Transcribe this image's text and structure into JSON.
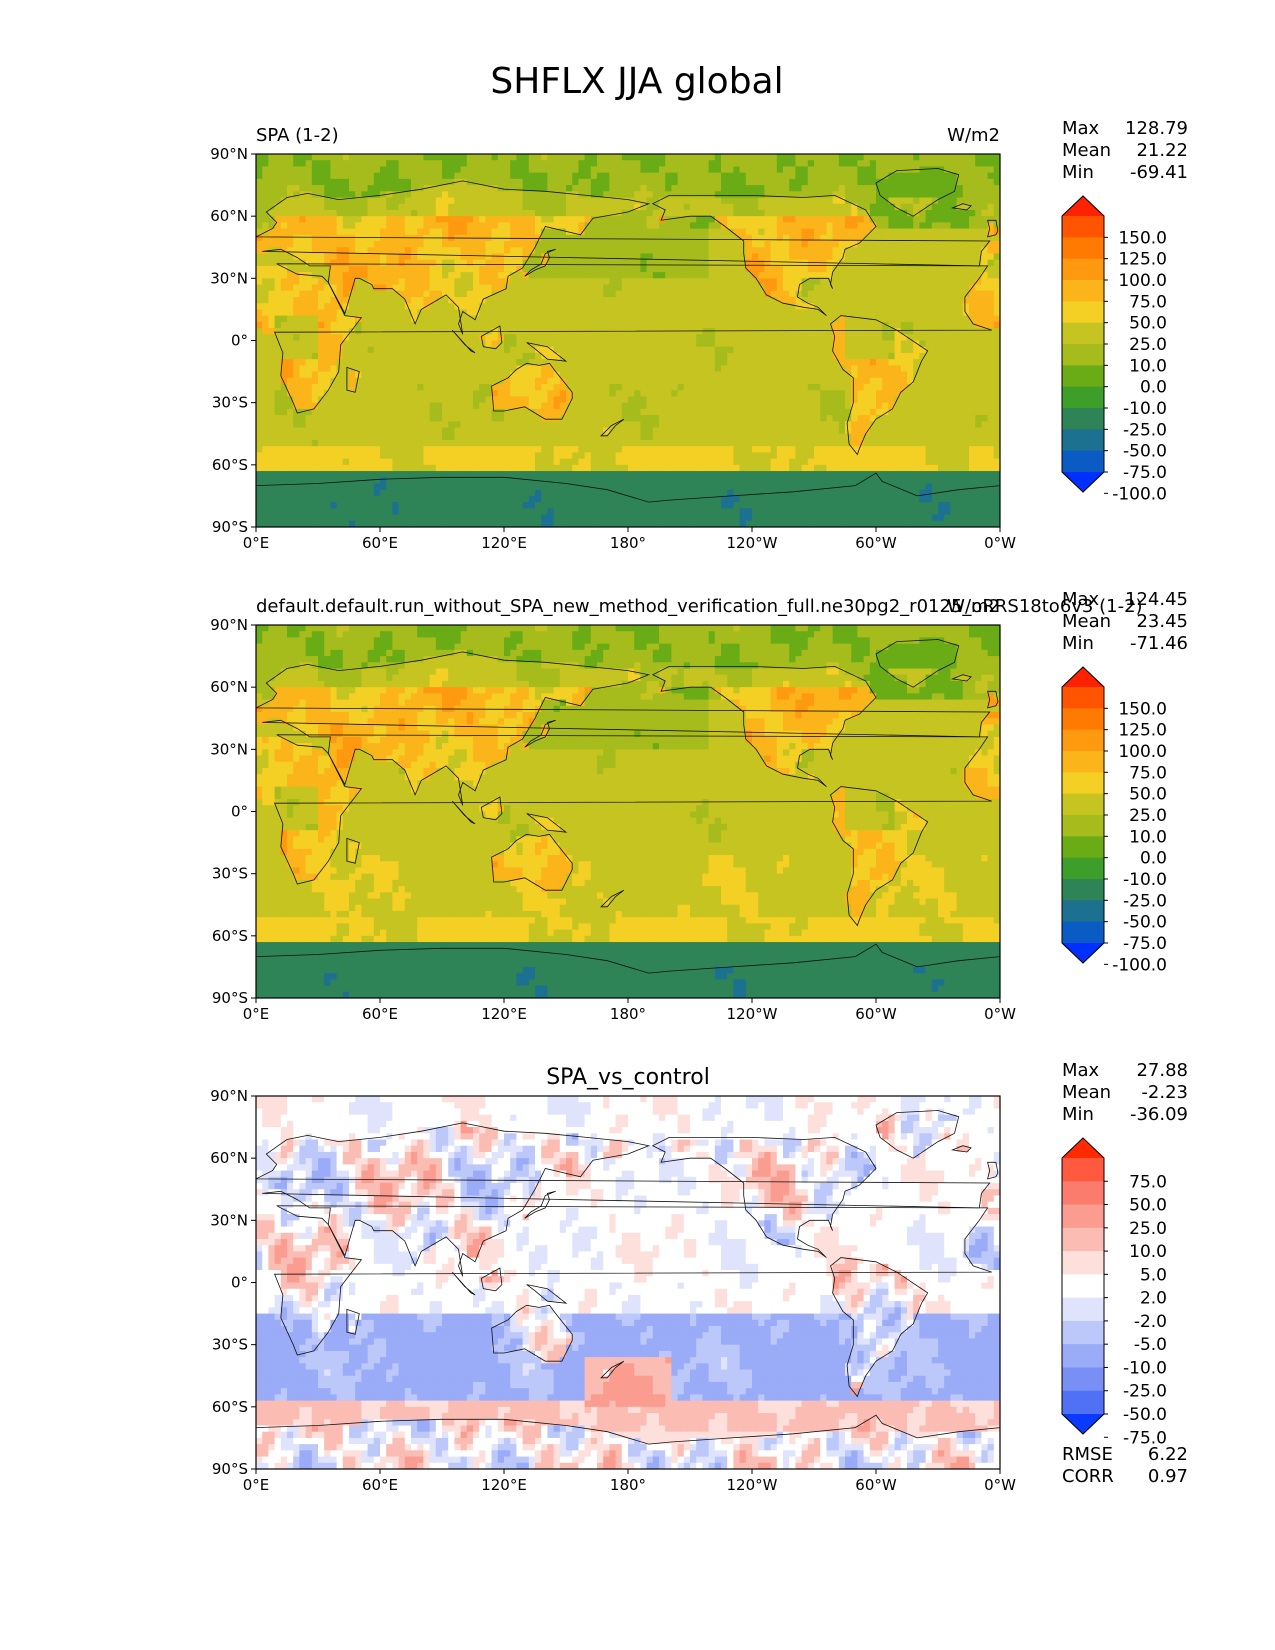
{
  "title": "SHFLX JJA global",
  "lon_ticks": [
    "0°E",
    "60°E",
    "120°E",
    "180°",
    "120°W",
    "60°W",
    "0°W"
  ],
  "lat_ticks": [
    "90°N",
    "60°N",
    "30°N",
    "0°",
    "30°S",
    "60°S",
    "90°S"
  ],
  "panels": [
    {
      "left_title": "SPA (1-2)",
      "center_title": "",
      "units": "W/m2",
      "stats": [
        {
          "label": "Max",
          "value": "128.79"
        },
        {
          "label": "Mean",
          "value": "21.22"
        },
        {
          "label": "Min",
          "value": "-69.41"
        }
      ],
      "colorbar_levels": [
        "150.0",
        "125.0",
        "100.0",
        "75.0",
        "50.0",
        "25.0",
        "10.0",
        "0.0",
        "-10.0",
        "-25.0",
        "-50.0",
        "-75.0",
        "-100.0"
      ],
      "colorbar_colors": [
        "#ff2200",
        "#ff5500",
        "#ff7a00",
        "#ff9a10",
        "#fbb51a",
        "#f4cf24",
        "#c6c420",
        "#a6bc1c",
        "#6aac16",
        "#3e9e2a",
        "#2e8456",
        "#1c7090",
        "#0a5cc4",
        "#0030ff"
      ]
    },
    {
      "left_title": "default.default.run_without_SPA_new_method_verification_full.ne30pg2_r0125_oRRS18to6v3 (1-2)",
      "center_title": "",
      "units": "W/m2",
      "stats": [
        {
          "label": "Max",
          "value": "124.45"
        },
        {
          "label": "Mean",
          "value": "23.45"
        },
        {
          "label": "Min",
          "value": "-71.46"
        }
      ],
      "colorbar_levels": [
        "150.0",
        "125.0",
        "100.0",
        "75.0",
        "50.0",
        "25.0",
        "10.0",
        "0.0",
        "-10.0",
        "-25.0",
        "-50.0",
        "-75.0",
        "-100.0"
      ],
      "colorbar_colors": [
        "#ff2200",
        "#ff5500",
        "#ff7a00",
        "#ff9a10",
        "#fbb51a",
        "#f4cf24",
        "#c6c420",
        "#a6bc1c",
        "#6aac16",
        "#3e9e2a",
        "#2e8456",
        "#1c7090",
        "#0a5cc4",
        "#0030ff"
      ]
    },
    {
      "left_title": "",
      "center_title": "SPA_vs_control",
      "units": "",
      "stats": [
        {
          "label": "Max",
          "value": "27.88"
        },
        {
          "label": "Mean",
          "value": "-2.23"
        },
        {
          "label": "Min",
          "value": "-36.09"
        }
      ],
      "colorbar_levels": [
        "75.0",
        "50.0",
        "25.0",
        "10.0",
        "5.0",
        "2.0",
        "-2.0",
        "-5.0",
        "-10.0",
        "-25.0",
        "-50.0",
        "-75.0"
      ],
      "colorbar_colors": [
        "#ff2a00",
        "#ff5a40",
        "#fb7b6c",
        "#fa9c8f",
        "#fbbcb3",
        "#fde0dc",
        "#ffffff",
        "#dfe4fc",
        "#bcc7fa",
        "#9aabf7",
        "#788ff4",
        "#5070f5",
        "#0a3aff"
      ],
      "footer_stats": [
        {
          "label": "RMSE",
          "value": "6.22"
        },
        {
          "label": "CORR",
          "value": "0.97"
        }
      ]
    }
  ]
}
